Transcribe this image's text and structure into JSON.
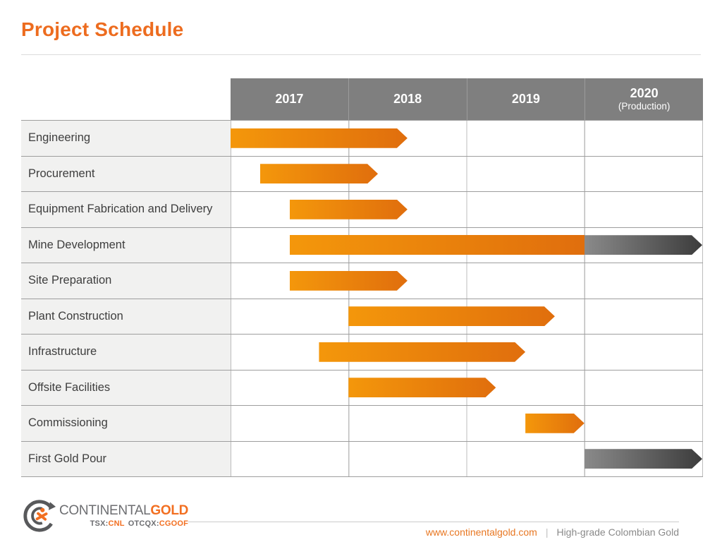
{
  "slide": {
    "title": "Project Schedule"
  },
  "chart_data": {
    "type": "bar",
    "variant": "gantt",
    "title": "Project Schedule",
    "columns": [
      {
        "label": "2017"
      },
      {
        "label": "2018"
      },
      {
        "label": "2019"
      },
      {
        "label": "2020",
        "sublabel": "(Production)"
      }
    ],
    "axis": {
      "start_year": 2017,
      "end_year": 2021,
      "grid": "quarter-free, year gridlines on"
    },
    "legend": "orange = construction phase, gray = production phase",
    "tasks": [
      {
        "label": "Engineering",
        "segments": [
          {
            "start": 2017.0,
            "end": 2018.5,
            "color": "orange",
            "arrow": true
          }
        ]
      },
      {
        "label": "Procurement",
        "segments": [
          {
            "start": 2017.25,
            "end": 2018.25,
            "color": "orange",
            "arrow": true
          }
        ]
      },
      {
        "label": "Equipment Fabrication and Delivery",
        "segments": [
          {
            "start": 2017.5,
            "end": 2018.5,
            "color": "orange",
            "arrow": true
          }
        ]
      },
      {
        "label": "Mine Development",
        "segments": [
          {
            "start": 2017.5,
            "end": 2020.0,
            "color": "orange",
            "arrow": false
          },
          {
            "start": 2020.0,
            "end": 2021.0,
            "color": "gray",
            "arrow": true
          }
        ]
      },
      {
        "label": "Site Preparation",
        "segments": [
          {
            "start": 2017.5,
            "end": 2018.5,
            "color": "orange",
            "arrow": true
          }
        ]
      },
      {
        "label": "Plant Construction",
        "segments": [
          {
            "start": 2018.0,
            "end": 2019.75,
            "color": "orange",
            "arrow": true
          }
        ]
      },
      {
        "label": "Infrastructure",
        "segments": [
          {
            "start": 2017.75,
            "end": 2019.5,
            "color": "orange",
            "arrow": true
          }
        ]
      },
      {
        "label": "Offsite Facilities",
        "segments": [
          {
            "start": 2018.0,
            "end": 2019.25,
            "color": "orange",
            "arrow": true
          }
        ]
      },
      {
        "label": "Commissioning",
        "segments": [
          {
            "start": 2019.5,
            "end": 2020.0,
            "color": "orange",
            "arrow": true
          }
        ]
      },
      {
        "label": "First Gold Pour",
        "segments": [
          {
            "start": 2020.0,
            "end": 2021.0,
            "color": "gray",
            "arrow": true
          }
        ]
      }
    ]
  },
  "footer": {
    "logo": {
      "wordmark_gray": "CONTINENTAL",
      "wordmark_orange": "GOLD",
      "ticker": {
        "tsx_label": "TSX:",
        "tsx_value": "CNL",
        "otc_label": "OTCQX:",
        "otc_value": "CGOOF"
      }
    },
    "website": "www.continentalgold.com",
    "separator": "|",
    "tagline": "High-grade Colombian Gold"
  },
  "colors": {
    "accent_orange": "#ED6C1F",
    "bar_orange_start": "#F4970B",
    "bar_orange_end": "#E06E0D",
    "bar_gray_start": "#8A8A8A",
    "bar_gray_end": "#3C3C3C",
    "header_bg": "#7F7F7F",
    "label_bg": "#F1F1F0",
    "grid_vertical": "#BDBDBD",
    "grid_horizontal": "#9E9E9E"
  }
}
